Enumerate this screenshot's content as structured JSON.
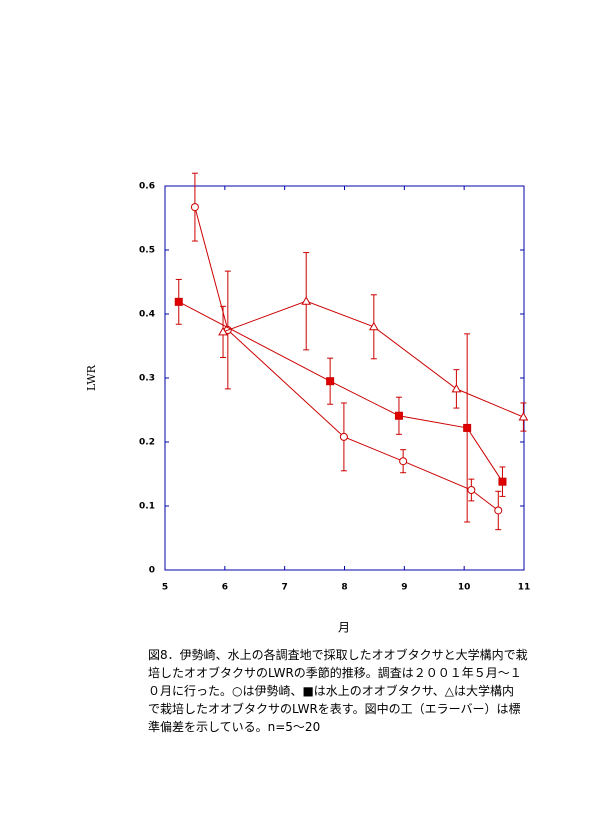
{
  "chart_data": {
    "type": "line",
    "x_label": "月",
    "y_label": "LWR",
    "xlim": [
      5,
      11
    ],
    "xticks": [
      5,
      6,
      7,
      8,
      9,
      10,
      11
    ],
    "ylim": [
      0,
      0.6
    ],
    "yticks": [
      0,
      0.1,
      0.2,
      0.3,
      0.4,
      0.5,
      0.6
    ],
    "axis_color": "#0000aa",
    "series": [
      {
        "marker": "circle",
        "color": "#cc0000",
        "fill": "#ffffff",
        "x": [
          5.5,
          6.05,
          7.99,
          8.98,
          10.12,
          10.57
        ],
        "values": [
          0.567,
          0.375,
          0.208,
          0.17,
          0.125,
          0.093
        ],
        "errors": [
          0.053,
          0.092,
          0.053,
          0.018,
          0.017,
          0.03
        ]
      },
      {
        "marker": "square",
        "color": "#cc0000",
        "fill": "#e00000",
        "x": [
          5.23,
          7.76,
          8.91,
          10.05,
          10.64
        ],
        "values": [
          0.419,
          0.295,
          0.241,
          0.222,
          0.138
        ],
        "errors": [
          0.035,
          0.036,
          0.029,
          0.147,
          0.023
        ]
      },
      {
        "marker": "triangle",
        "color": "#cc0000",
        "fill": "#ffffff",
        "x": [
          5.97,
          7.36,
          8.49,
          9.87,
          10.99
        ],
        "values": [
          0.372,
          0.42,
          0.38,
          0.283,
          0.239
        ],
        "errors": [
          0.04,
          0.076,
          0.05,
          0.03,
          0.022
        ]
      }
    ]
  },
  "caption": [
    "図8．伊勢崎、水上の各調査地で採取したオオブタクサと大学構内で栽",
    "培したオオブタクサのLWRの季節的推移。調査は２００１年５月～１",
    "０月に行った。○は伊勢崎、■は水上のオオブタクサ、△は大学構内",
    "で栽培したオオブタクサのLWRを表す。図中の工（エラーバー）は標",
    "準偏差を示している。n=5～20"
  ]
}
